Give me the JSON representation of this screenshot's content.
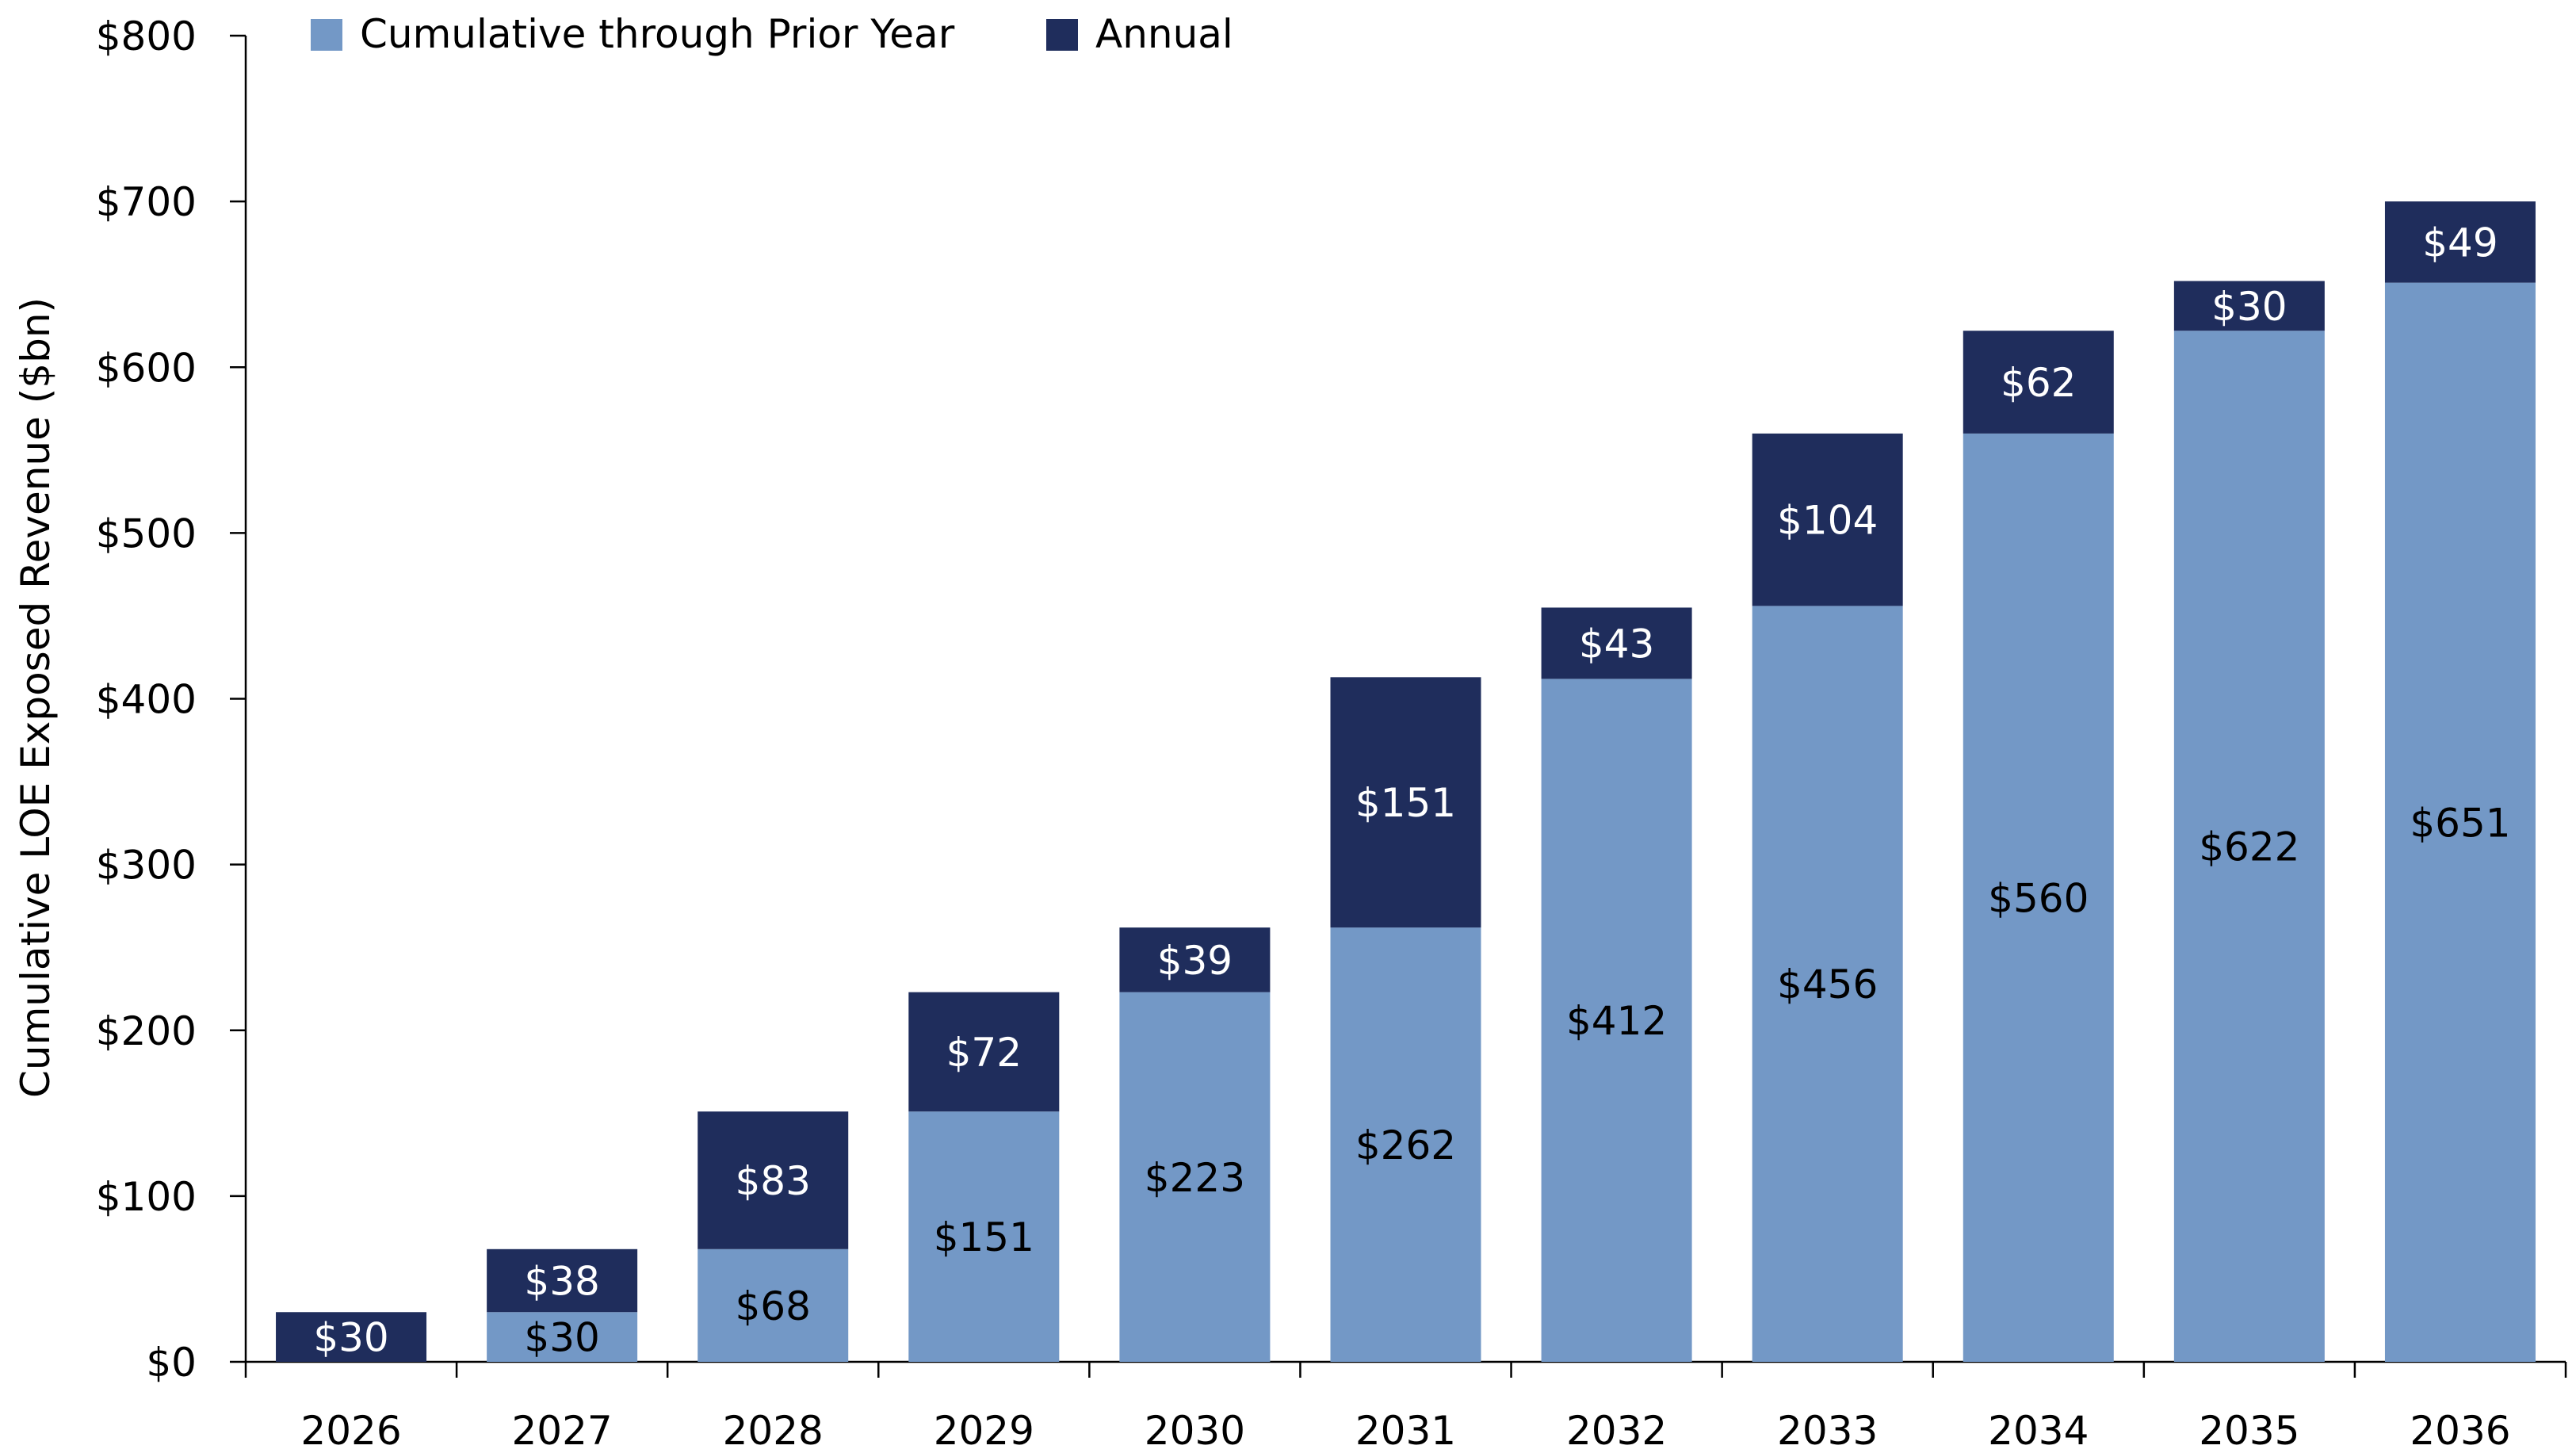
{
  "chart_data": {
    "type": "bar",
    "stacked": true,
    "categories": [
      "2026",
      "2027",
      "2028",
      "2029",
      "2030",
      "2031",
      "2032",
      "2033",
      "2034",
      "2035",
      "2036"
    ],
    "series": [
      {
        "name": "Cumulative through Prior Year",
        "color": "#7398c6",
        "label_color": "#000000",
        "values": [
          0,
          30,
          68,
          151,
          223,
          262,
          412,
          456,
          560,
          622,
          651
        ],
        "labels": [
          "",
          "$30",
          "$68",
          "$151",
          "$223",
          "$262",
          "$412",
          "$456",
          "$560",
          "$622",
          "$651"
        ]
      },
      {
        "name": "Annual",
        "color": "#1f2d5c",
        "label_color": "#ffffff",
        "values": [
          30,
          38,
          83,
          72,
          39,
          151,
          43,
          104,
          62,
          30,
          49
        ],
        "labels": [
          "$30",
          "$38",
          "$83",
          "$72",
          "$39",
          "$151",
          "$43",
          "$104",
          "$62",
          "$30",
          "$49"
        ]
      }
    ],
    "title": "",
    "xlabel": "",
    "ylabel": "Cumulative LOE Exposed Revenue ($bn)",
    "ylim": [
      0,
      800
    ],
    "yticks": [
      0,
      100,
      200,
      300,
      400,
      500,
      600,
      700,
      800
    ],
    "ytick_labels": [
      "$0",
      "$100",
      "$200",
      "$300",
      "$400",
      "$500",
      "$600",
      "$700",
      "$800"
    ],
    "grid": false,
    "legend_position": "top-left"
  }
}
